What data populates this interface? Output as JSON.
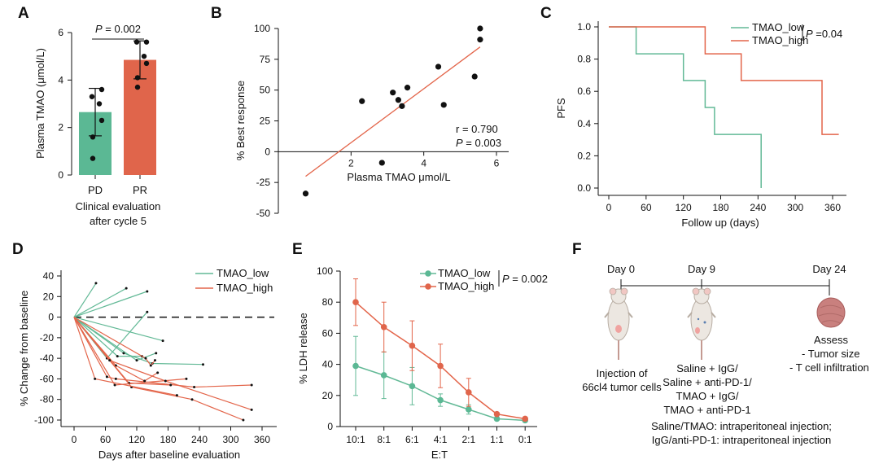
{
  "colors": {
    "green": "#5bb894",
    "red": "#e0654b",
    "green_line": "#62b996",
    "red_line": "#e3654a",
    "black": "#111111"
  },
  "panel_labels": [
    "A",
    "B",
    "C",
    "D",
    "E",
    "F"
  ],
  "chart_data": [
    {
      "panel": "A",
      "type": "bar",
      "categories": [
        "PD",
        "PR"
      ],
      "values": [
        2.65,
        4.85
      ],
      "errors": [
        1.0,
        0.8
      ],
      "points": [
        [
          3.3,
          3.6,
          3.0,
          2.3,
          1.6,
          0.7
        ],
        [
          5.6,
          5.6,
          5.0,
          4.7,
          4.1,
          3.7
        ]
      ],
      "ylabel": "Plasma TMAO (μmol/L)",
      "xlabel_lines": [
        "Clinical evaluation",
        "after cycle 5"
      ],
      "ylim": [
        0,
        6
      ],
      "yticks": [
        0,
        2,
        4,
        6
      ],
      "annotation": {
        "p_italic": "P",
        "p_rest": " = 0.002"
      }
    },
    {
      "panel": "B",
      "type": "scatter",
      "x": [
        0.75,
        2.3,
        2.85,
        3.15,
        3.3,
        3.4,
        3.55,
        4.4,
        4.55,
        5.4,
        5.55,
        5.55
      ],
      "y": [
        -34,
        41,
        -9,
        48,
        42,
        37,
        52,
        69,
        38,
        61,
        91,
        100
      ],
      "fit_line": {
        "x": [
          0.75,
          5.55
        ],
        "y": [
          -20,
          85
        ]
      },
      "xlabel": "Plasma TMAO μmol/L",
      "ylabel": "% Best response",
      "xlim": [
        0,
        6.4
      ],
      "ylim": [
        -50,
        100
      ],
      "xticks": [
        2,
        4,
        6
      ],
      "yticks": [
        -50,
        -25,
        0,
        25,
        50,
        75,
        100
      ],
      "annotation": {
        "r": "r = 0.790",
        "p_italic": "P",
        "p_rest": " = 0.003"
      }
    },
    {
      "panel": "C",
      "type": "line",
      "series": [
        {
          "name": "TMAO_low",
          "x": [
            0,
            44,
            44,
            120,
            120,
            155,
            155,
            170,
            170,
            245,
            245
          ],
          "y": [
            1.0,
            1.0,
            0.833,
            0.833,
            0.667,
            0.667,
            0.5,
            0.5,
            0.333,
            0.333,
            0.0
          ]
        },
        {
          "name": "TMAO_high",
          "x": [
            0,
            155,
            155,
            213,
            213,
            343,
            343,
            370
          ],
          "y": [
            1.0,
            1.0,
            0.833,
            0.833,
            0.667,
            0.667,
            0.333,
            0.333
          ]
        }
      ],
      "xlabel": "Follow up (days)",
      "ylabel": "PFS",
      "xlim": [
        -15,
        375
      ],
      "ylim": [
        -0.04,
        1.04
      ],
      "xticks": [
        0,
        60,
        120,
        180,
        240,
        300,
        360
      ],
      "yticks": [
        0.0,
        0.2,
        0.4,
        0.6,
        0.8,
        1.0
      ],
      "yticklabels": [
        "0.0",
        "0.2",
        "0.4",
        "0.6",
        "0.8",
        "1.0"
      ],
      "annotation": {
        "p_italic": "P",
        "p_rest": " =0.04"
      }
    },
    {
      "panel": "D",
      "type": "line",
      "series": [
        {
          "name": "TMAO_low",
          "lines": [
            [
              [
                0,
                0
              ],
              [
                42,
                33
              ]
            ],
            [
              [
                0,
                0
              ],
              [
                100,
                28
              ]
            ],
            [
              [
                0,
                0
              ],
              [
                140,
                25
              ]
            ],
            [
              [
                0,
                0
              ],
              [
                63,
                -40
              ],
              [
                140,
                5
              ]
            ],
            [
              [
                0,
                0
              ],
              [
                170,
                -23
              ]
            ],
            [
              [
                0,
                0
              ],
              [
                83,
                -38
              ],
              [
                130,
                -38
              ]
            ],
            [
              [
                0,
                0
              ],
              [
                95,
                -35
              ],
              [
                150,
                -45
              ],
              [
                247,
                -46
              ]
            ],
            [
              [
                0,
                0
              ],
              [
                120,
                -42
              ],
              [
                157,
                -35
              ]
            ]
          ]
        },
        {
          "name": "TMAO_high",
          "lines": [
            [
              [
                0,
                0
              ],
              [
                63,
                -58
              ],
              [
                80,
                -60
              ],
              [
                230,
                -68
              ],
              [
                340,
                -66
              ]
            ],
            [
              [
                0,
                0
              ],
              [
                78,
                -66
              ],
              [
                215,
                -60
              ]
            ],
            [
              [
                0,
                0
              ],
              [
                80,
                -47
              ],
              [
                135,
                -62
              ],
              [
                160,
                -54
              ]
            ],
            [
              [
                0,
                0
              ],
              [
                105,
                -64
              ],
              [
                185,
                -66
              ]
            ],
            [
              [
                0,
                0
              ],
              [
                110,
                -68
              ],
              [
                226,
                -80
              ],
              [
                324,
                -100
              ]
            ],
            [
              [
                0,
                0
              ],
              [
                68,
                -42
              ],
              [
                175,
                -62
              ],
              [
                340,
                -90
              ]
            ],
            [
              [
                0,
                0
              ],
              [
                40,
                -60
              ],
              [
                197,
                -76
              ]
            ],
            [
              [
                0,
                0
              ],
              [
                137,
                -40
              ],
              [
                147,
                -47
              ],
              [
                155,
                -42
              ]
            ]
          ]
        }
      ],
      "xlabel": "Days after baseline evaluation",
      "ylabel": "% Change from baseline",
      "xlim": [
        -10,
        365
      ],
      "ylim": [
        -105,
        45
      ],
      "xticks": [
        0,
        60,
        120,
        180,
        240,
        300,
        360
      ],
      "yticks": [
        40,
        20,
        0,
        -20,
        -40,
        -60,
        -80,
        -100
      ]
    },
    {
      "panel": "E",
      "type": "line",
      "categories": [
        "10:1",
        "8:1",
        "6:1",
        "4:1",
        "2:1",
        "1:1",
        "0:1"
      ],
      "series": [
        {
          "name": "TMAO_low",
          "values": [
            39,
            33,
            26,
            17,
            11,
            5,
            4
          ],
          "errors": [
            19,
            15,
            12,
            4,
            3,
            1,
            1
          ]
        },
        {
          "name": "TMAO_high",
          "values": [
            80,
            64,
            52,
            39,
            22,
            8,
            5
          ],
          "errors": [
            15,
            16,
            16,
            14,
            9,
            1,
            1
          ]
        }
      ],
      "xlabel": "E:T",
      "ylabel": "% LDH release",
      "ylim": [
        0,
        100
      ],
      "yticks": [
        0,
        20,
        40,
        60,
        80,
        100
      ],
      "annotation": {
        "p_italic": "P",
        "p_rest": " = 0.002"
      }
    }
  ],
  "panel_f": {
    "day_labels": [
      "Day 0",
      "Day 9",
      "Day 24"
    ],
    "injection": [
      "Injection of",
      "66cl4 tumor cells"
    ],
    "treatments": [
      "Saline + IgG/",
      "Saline + anti-PD-1/",
      "TMAO + IgG/",
      "TMAO + anti-PD-1"
    ],
    "routes": [
      "Saline/TMAO: intraperitoneal injection;",
      "IgG/anti-PD-1: intraperitoneal injection"
    ],
    "assess": [
      "Assess",
      "- Tumor size",
      "- T cell infiltration"
    ]
  }
}
